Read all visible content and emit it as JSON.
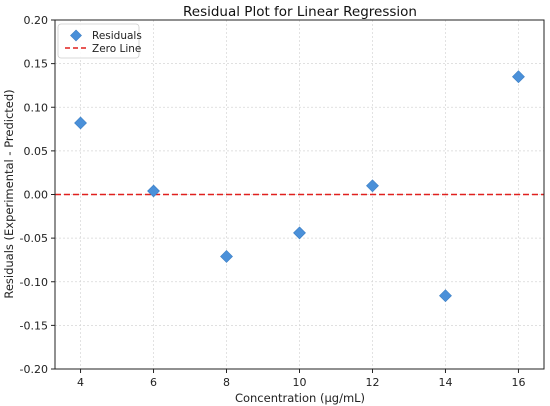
{
  "chart_data": {
    "type": "scatter",
    "title": "Residual Plot for Linear Regression",
    "xlabel": "Concentration (μg/mL)",
    "ylabel": "Residuals (Experimental - Predicted)",
    "xlim": [
      3.3,
      16.7
    ],
    "ylim": [
      -0.2,
      0.2
    ],
    "xticks": [
      4,
      6,
      8,
      10,
      12,
      14,
      16
    ],
    "yticks": [
      0.2,
      0.15,
      0.1,
      0.05,
      0.0,
      -0.05,
      -0.1,
      -0.15,
      -0.2
    ],
    "ytick_labels": [
      "0.20",
      "0.15",
      "0.10",
      "0.05",
      "0.00",
      "-0.05",
      "-0.10",
      "-0.15",
      "-0.20"
    ],
    "grid": true,
    "legend_position": "top-left",
    "series": [
      {
        "name": "Residuals",
        "marker": "diamond",
        "color": "#4a90d9",
        "x": [
          4,
          6,
          8,
          10,
          12,
          14,
          16
        ],
        "y": [
          0.082,
          0.004,
          -0.071,
          -0.044,
          0.01,
          -0.116,
          0.135
        ]
      }
    ],
    "reference_line": {
      "name": "Zero Line",
      "y": 0,
      "color": "#e0201e",
      "style": "dashed"
    }
  }
}
